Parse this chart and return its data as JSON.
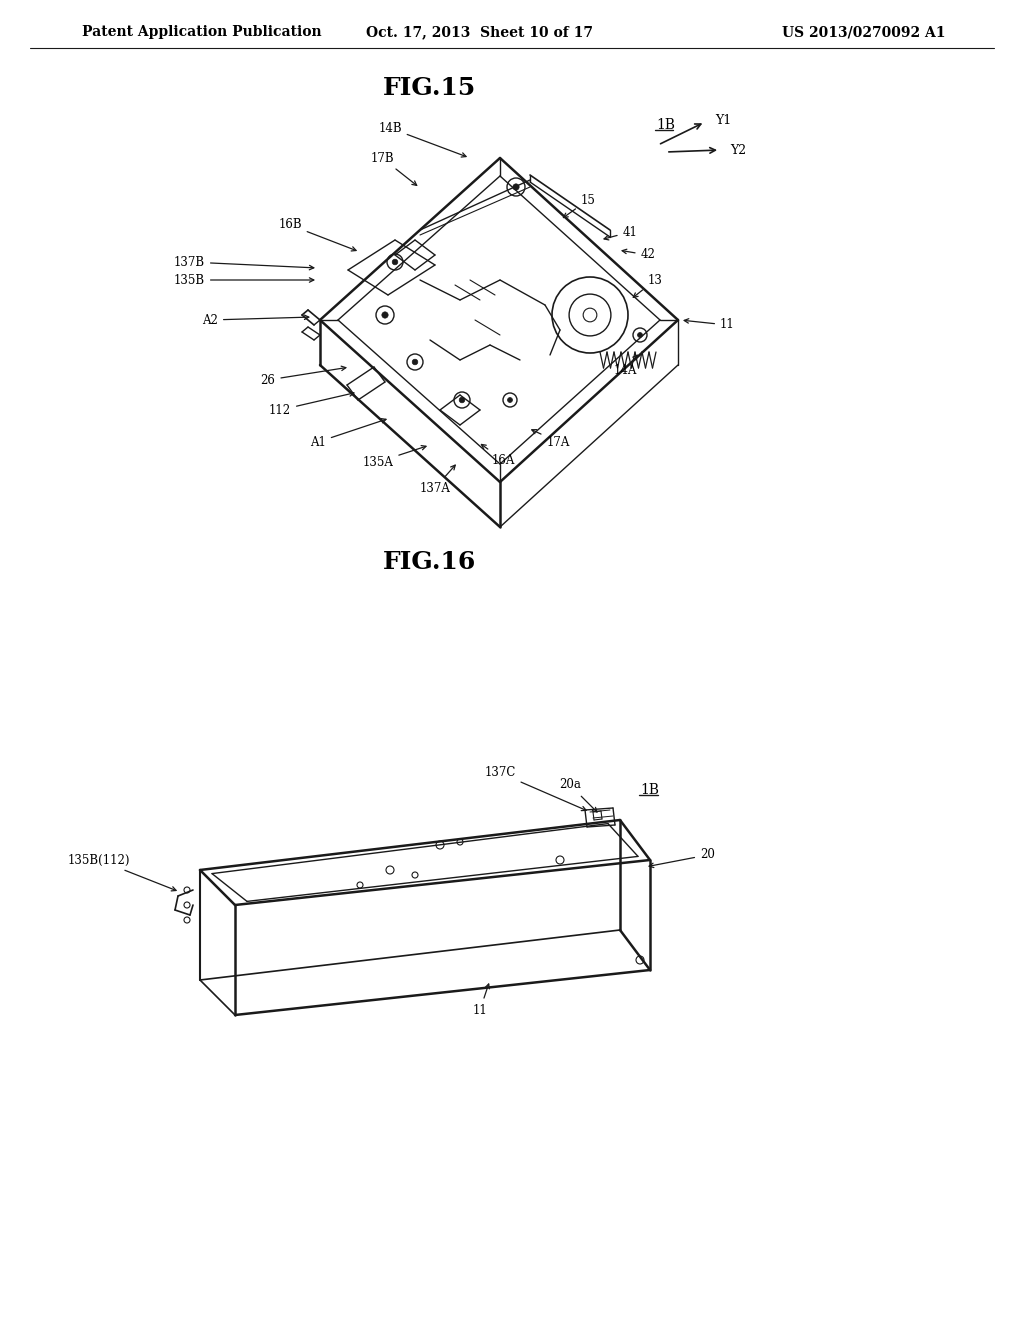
{
  "background_color": "#ffffff",
  "header_left": "Patent Application Publication",
  "header_center": "Oct. 17, 2013  Sheet 10 of 17",
  "header_right": "US 2013/0270092 A1",
  "fig15_title": "FIG.15",
  "fig16_title": "FIG.16",
  "line_color": "#1a1a1a",
  "text_color": "#000000",
  "font_size_header": 10,
  "font_size_fig_title": 16,
  "font_size_label": 9
}
